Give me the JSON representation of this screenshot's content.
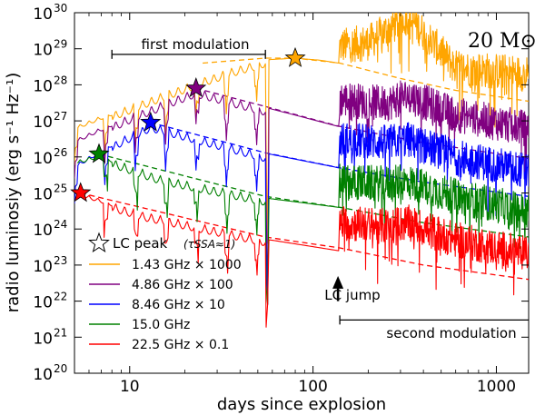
{
  "chart_data": {
    "type": "line",
    "title": "20 M⊙",
    "xlabel": "days since explosion",
    "ylabel": "radio luminosiy (erg s⁻¹ Hz⁻¹)",
    "xscale": "log",
    "yscale": "log",
    "xlim": [
      5,
      1500
    ],
    "ylim": [
      1e+20,
      1e+30
    ],
    "x_tick_labels": [
      {
        "value": 10,
        "label": "10"
      },
      {
        "value": 100,
        "label": "100"
      },
      {
        "value": 1000,
        "label": "1000"
      }
    ],
    "y_tick_labels": [
      {
        "value": 1e+20,
        "mantissa": "10",
        "exp": "20"
      },
      {
        "value": 1e+21,
        "mantissa": "10",
        "exp": "21"
      },
      {
        "value": 1e+22,
        "mantissa": "10",
        "exp": "22"
      },
      {
        "value": 1e+23,
        "mantissa": "10",
        "exp": "23"
      },
      {
        "value": 1e+24,
        "mantissa": "10",
        "exp": "24"
      },
      {
        "value": 1e+25,
        "mantissa": "10",
        "exp": "25"
      },
      {
        "value": 1e+26,
        "mantissa": "10",
        "exp": "26"
      },
      {
        "value": 1e+27,
        "mantissa": "10",
        "exp": "27"
      },
      {
        "value": 1e+28,
        "mantissa": "10",
        "exp": "28"
      },
      {
        "value": 1e+29,
        "mantissa": "10",
        "exp": "29"
      },
      {
        "value": 1e+30,
        "mantissa": "10",
        "exp": "30"
      }
    ],
    "series": [
      {
        "name": "1.43 GHz × 1000",
        "color": "#FFA500",
        "peak": {
          "t": 80,
          "L": 5.5e+28
        },
        "dashed": [
          [
            25,
            4e+28
          ],
          [
            55,
            5.5e+28
          ],
          [
            80,
            5.5e+28
          ],
          [
            140,
            4e+28
          ],
          [
            300,
            1.5e+28
          ],
          [
            600,
            7e+27
          ],
          [
            1500,
            3.5e+27
          ]
        ],
        "early": [
          [
            5,
            7e+26
          ],
          [
            12,
            4e+27
          ],
          [
            25,
            1.6e+28
          ],
          [
            40,
            3.5e+28
          ],
          [
            55,
            5.5e+28
          ]
        ],
        "mid": [
          [
            58,
            5e+28
          ],
          [
            80,
            5.5e+28
          ],
          [
            110,
            4.8e+28
          ],
          [
            138,
            4e+28
          ]
        ],
        "late_level": [
          [
            140,
            1.2e+29
          ],
          [
            200,
            1.5e+29
          ],
          [
            330,
            8e+29
          ],
          [
            600,
            3e+28
          ],
          [
            1500,
            2e+28
          ]
        ]
      },
      {
        "name": "4.86 GHz × 100",
        "color": "#800080",
        "peak": {
          "t": 23,
          "L": 8e+27
        },
        "dashed": [
          [
            23,
            8e+27
          ],
          [
            55,
            2.5e+27
          ],
          [
            140,
            7e+26
          ],
          [
            400,
            2.5e+26
          ],
          [
            1500,
            9e+25
          ]
        ],
        "early": [
          [
            5,
            3e+26
          ],
          [
            10,
            1.5e+27
          ],
          [
            18,
            5e+27
          ],
          [
            23,
            8e+27
          ],
          [
            55,
            2.5e+27
          ]
        ],
        "mid": [
          [
            58,
            2.2e+27
          ],
          [
            138,
            7e+26
          ]
        ],
        "late_level": [
          [
            140,
            4e+27
          ],
          [
            250,
            3e+27
          ],
          [
            330,
            5e+27
          ],
          [
            600,
            1.5e+27
          ],
          [
            1500,
            6e+26
          ]
        ]
      },
      {
        "name": "8.46 GHz × 10",
        "color": "#0000FF",
        "peak": {
          "t": 13,
          "L": 9e+26
        },
        "dashed": [
          [
            13,
            9e+26
          ],
          [
            55,
            1.3e+26
          ],
          [
            140,
            5e+25
          ],
          [
            400,
            2e+25
          ],
          [
            1500,
            8e+24
          ]
        ],
        "early": [
          [
            5,
            6e+25
          ],
          [
            9,
            3.5e+26
          ],
          [
            13,
            9e+26
          ],
          [
            55,
            1.3e+26
          ]
        ],
        "mid": [
          [
            58,
            1.2e+26
          ],
          [
            138,
            5e+25
          ]
        ],
        "late_level": [
          [
            140,
            3e+26
          ],
          [
            250,
            2.5e+26
          ],
          [
            330,
            3e+26
          ],
          [
            600,
            1e+26
          ],
          [
            1500,
            4e+25
          ]
        ]
      },
      {
        "name": "15.0 GHz",
        "color": "#008000",
        "peak": {
          "t": 6.8,
          "L": 1.2e+26
        },
        "dashed": [
          [
            6.8,
            1.2e+26
          ],
          [
            55,
            8e+24
          ],
          [
            140,
            4e+24
          ],
          [
            400,
            1.5e+24
          ],
          [
            1500,
            6e+23
          ]
        ],
        "early": [
          [
            5.2,
            8e+25
          ],
          [
            6.8,
            1.2e+26
          ],
          [
            15,
            3e+25
          ],
          [
            55,
            8e+24
          ]
        ],
        "mid": [
          [
            58,
            7e+24
          ],
          [
            138,
            4e+24
          ]
        ],
        "late_level": [
          [
            140,
            2e+25
          ],
          [
            250,
            1.8e+25
          ],
          [
            330,
            2e+25
          ],
          [
            600,
            8e+24
          ],
          [
            1500,
            3e+24
          ]
        ]
      },
      {
        "name": "22.5 GHz × 0.1",
        "color": "#FF0000",
        "peak": {
          "t": 5.4,
          "L": 1e+25
        },
        "dashed": [
          [
            5.4,
            1e+25
          ],
          [
            55,
            6e+23
          ],
          [
            140,
            3e+23
          ],
          [
            400,
            1e+23
          ],
          [
            1500,
            4e+22
          ]
        ],
        "early": [
          [
            5.4,
            1e+25
          ],
          [
            12,
            3e+24
          ],
          [
            55,
            6e+23
          ]
        ],
        "mid": [
          [
            58,
            5e+23
          ],
          [
            138,
            2.5e+23
          ]
        ],
        "late_level": [
          [
            140,
            1.5e+24
          ],
          [
            250,
            1.2e+24
          ],
          [
            330,
            1.5e+24
          ],
          [
            600,
            5e+23
          ],
          [
            1500,
            2e+23
          ]
        ]
      }
    ],
    "annotations": {
      "first_modulation": {
        "label": "first modulation",
        "t_start": 8,
        "t_end": 55,
        "L": 7e+28
      },
      "second_modulation": {
        "label": "second modulation",
        "t_start": 140,
        "t_end": 1500,
        "L": 3e+21
      },
      "lc_jump": {
        "label": "LC jump",
        "t": 140,
        "L_arrow_tip": 5e+22,
        "L_arrow_tail": 1e+22
      }
    },
    "legend": {
      "position": "lower-left",
      "peak_label": "LC peak",
      "peak_sublabel": "(τSSA≈1)"
    }
  }
}
